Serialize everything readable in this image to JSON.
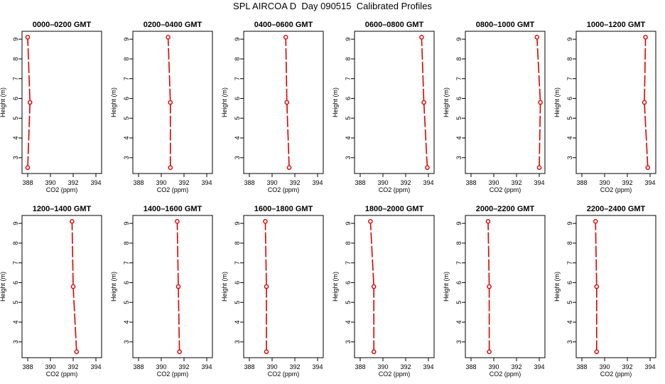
{
  "title": "SPL AIRCOA D  Day 090515  Calibrated Profiles",
  "chart_data": [
    {
      "type": "line",
      "title": "0000–0200 GMT",
      "xlabel": "CO2 (ppm)",
      "ylabel": "Height (m)",
      "xlim": [
        387.5,
        394.5
      ],
      "ylim": [
        2.2,
        9.4
      ],
      "xticks": [
        "388",
        "390",
        "392",
        "394"
      ],
      "yticks": [
        "3",
        "4",
        "5",
        "6",
        "7",
        "8",
        "9"
      ],
      "x": [
        388.0,
        388.2,
        388.0
      ],
      "y": [
        2.5,
        5.8,
        9.1
      ]
    },
    {
      "type": "line",
      "title": "0200–0400 GMT",
      "xlabel": "CO2 (ppm)",
      "ylabel": "Height (m)",
      "xlim": [
        387.5,
        394.5
      ],
      "ylim": [
        2.2,
        9.4
      ],
      "xticks": [
        "388",
        "390",
        "392",
        "394"
      ],
      "yticks": [
        "3",
        "4",
        "5",
        "6",
        "7",
        "8",
        "9"
      ],
      "x": [
        390.8,
        390.8,
        390.6
      ],
      "y": [
        2.5,
        5.8,
        9.1
      ]
    },
    {
      "type": "line",
      "title": "0400–0600 GMT",
      "xlabel": "CO2 (ppm)",
      "ylabel": "Height (m)",
      "xlim": [
        387.5,
        394.5
      ],
      "ylim": [
        2.2,
        9.4
      ],
      "xticks": [
        "388",
        "390",
        "392",
        "394"
      ],
      "yticks": [
        "3",
        "4",
        "5",
        "6",
        "7",
        "8",
        "9"
      ],
      "x": [
        391.5,
        391.3,
        391.2
      ],
      "y": [
        2.5,
        5.8,
        9.1
      ]
    },
    {
      "type": "line",
      "title": "0600–0800 GMT",
      "xlabel": "CO2 (ppm)",
      "ylabel": "Height (m)",
      "xlim": [
        387.5,
        394.5
      ],
      "ylim": [
        2.2,
        9.4
      ],
      "xticks": [
        "388",
        "390",
        "392",
        "394"
      ],
      "yticks": [
        "3",
        "4",
        "5",
        "6",
        "7",
        "8",
        "9"
      ],
      "x": [
        393.9,
        393.6,
        393.4
      ],
      "y": [
        2.5,
        5.8,
        9.1
      ]
    },
    {
      "type": "line",
      "title": "0800–1000 GMT",
      "xlabel": "CO2 (ppm)",
      "ylabel": "Height (m)",
      "xlim": [
        387.5,
        394.5
      ],
      "ylim": [
        2.2,
        9.4
      ],
      "xticks": [
        "388",
        "390",
        "392",
        "394"
      ],
      "yticks": [
        "3",
        "4",
        "5",
        "6",
        "7",
        "8",
        "9"
      ],
      "x": [
        394.0,
        394.1,
        393.8
      ],
      "y": [
        2.5,
        5.8,
        9.1
      ]
    },
    {
      "type": "line",
      "title": "1000–1200 GMT",
      "xlabel": "CO2 (ppm)",
      "ylabel": "Height (m)",
      "xlim": [
        387.5,
        394.5
      ],
      "ylim": [
        2.2,
        9.4
      ],
      "xticks": [
        "388",
        "390",
        "392",
        "394"
      ],
      "yticks": [
        "3",
        "4",
        "5",
        "6",
        "7",
        "8",
        "9"
      ],
      "x": [
        393.8,
        393.5,
        393.6
      ],
      "y": [
        2.5,
        5.8,
        9.1
      ]
    },
    {
      "type": "line",
      "title": "1200–1400 GMT",
      "xlabel": "CO2 (ppm)",
      "ylabel": "Height (m)",
      "xlim": [
        387.5,
        394.5
      ],
      "ylim": [
        2.2,
        9.4
      ],
      "xticks": [
        "388",
        "390",
        "392",
        "394"
      ],
      "yticks": [
        "3",
        "4",
        "5",
        "6",
        "7",
        "8",
        "9"
      ],
      "x": [
        392.3,
        392.0,
        391.9
      ],
      "y": [
        2.5,
        5.8,
        9.1
      ]
    },
    {
      "type": "line",
      "title": "1400–1600 GMT",
      "xlabel": "CO2 (ppm)",
      "ylabel": "Height (m)",
      "xlim": [
        387.5,
        394.5
      ],
      "ylim": [
        2.2,
        9.4
      ],
      "xticks": [
        "388",
        "390",
        "392",
        "394"
      ],
      "yticks": [
        "3",
        "4",
        "5",
        "6",
        "7",
        "8",
        "9"
      ],
      "x": [
        391.6,
        391.5,
        391.4
      ],
      "y": [
        2.5,
        5.8,
        9.1
      ]
    },
    {
      "type": "line",
      "title": "1600–1800 GMT",
      "xlabel": "CO2 (ppm)",
      "ylabel": "Height (m)",
      "xlim": [
        387.5,
        394.5
      ],
      "ylim": [
        2.2,
        9.4
      ],
      "xticks": [
        "388",
        "390",
        "392",
        "394"
      ],
      "yticks": [
        "3",
        "4",
        "5",
        "6",
        "7",
        "8",
        "9"
      ],
      "x": [
        389.5,
        389.5,
        389.4
      ],
      "y": [
        2.5,
        5.8,
        9.1
      ]
    },
    {
      "type": "line",
      "title": "1800–2000 GMT",
      "xlabel": "CO2 (ppm)",
      "ylabel": "Height (m)",
      "xlim": [
        387.5,
        394.5
      ],
      "ylim": [
        2.2,
        9.4
      ],
      "xticks": [
        "388",
        "390",
        "392",
        "394"
      ],
      "yticks": [
        "3",
        "4",
        "5",
        "6",
        "7",
        "8",
        "9"
      ],
      "x": [
        389.2,
        389.2,
        388.9
      ],
      "y": [
        2.5,
        5.8,
        9.1
      ]
    },
    {
      "type": "line",
      "title": "2000–2200 GMT",
      "xlabel": "CO2 (ppm)",
      "ylabel": "Height (m)",
      "xlim": [
        387.5,
        394.5
      ],
      "ylim": [
        2.2,
        9.4
      ],
      "xticks": [
        "388",
        "390",
        "392",
        "394"
      ],
      "yticks": [
        "3",
        "4",
        "5",
        "6",
        "7",
        "8",
        "9"
      ],
      "x": [
        389.6,
        389.6,
        389.5
      ],
      "y": [
        2.5,
        5.8,
        9.1
      ]
    },
    {
      "type": "line",
      "title": "2200–2400 GMT",
      "xlabel": "CO2 (ppm)",
      "ylabel": "Height (m)",
      "xlim": [
        387.5,
        394.5
      ],
      "ylim": [
        2.2,
        9.4
      ],
      "xticks": [
        "388",
        "390",
        "392",
        "394"
      ],
      "yticks": [
        "3",
        "4",
        "5",
        "6",
        "7",
        "8",
        "9"
      ],
      "x": [
        389.3,
        389.3,
        389.2
      ],
      "y": [
        2.5,
        5.8,
        9.1
      ]
    }
  ],
  "colors": {
    "series": "#dd0000",
    "axis": "#000000"
  }
}
